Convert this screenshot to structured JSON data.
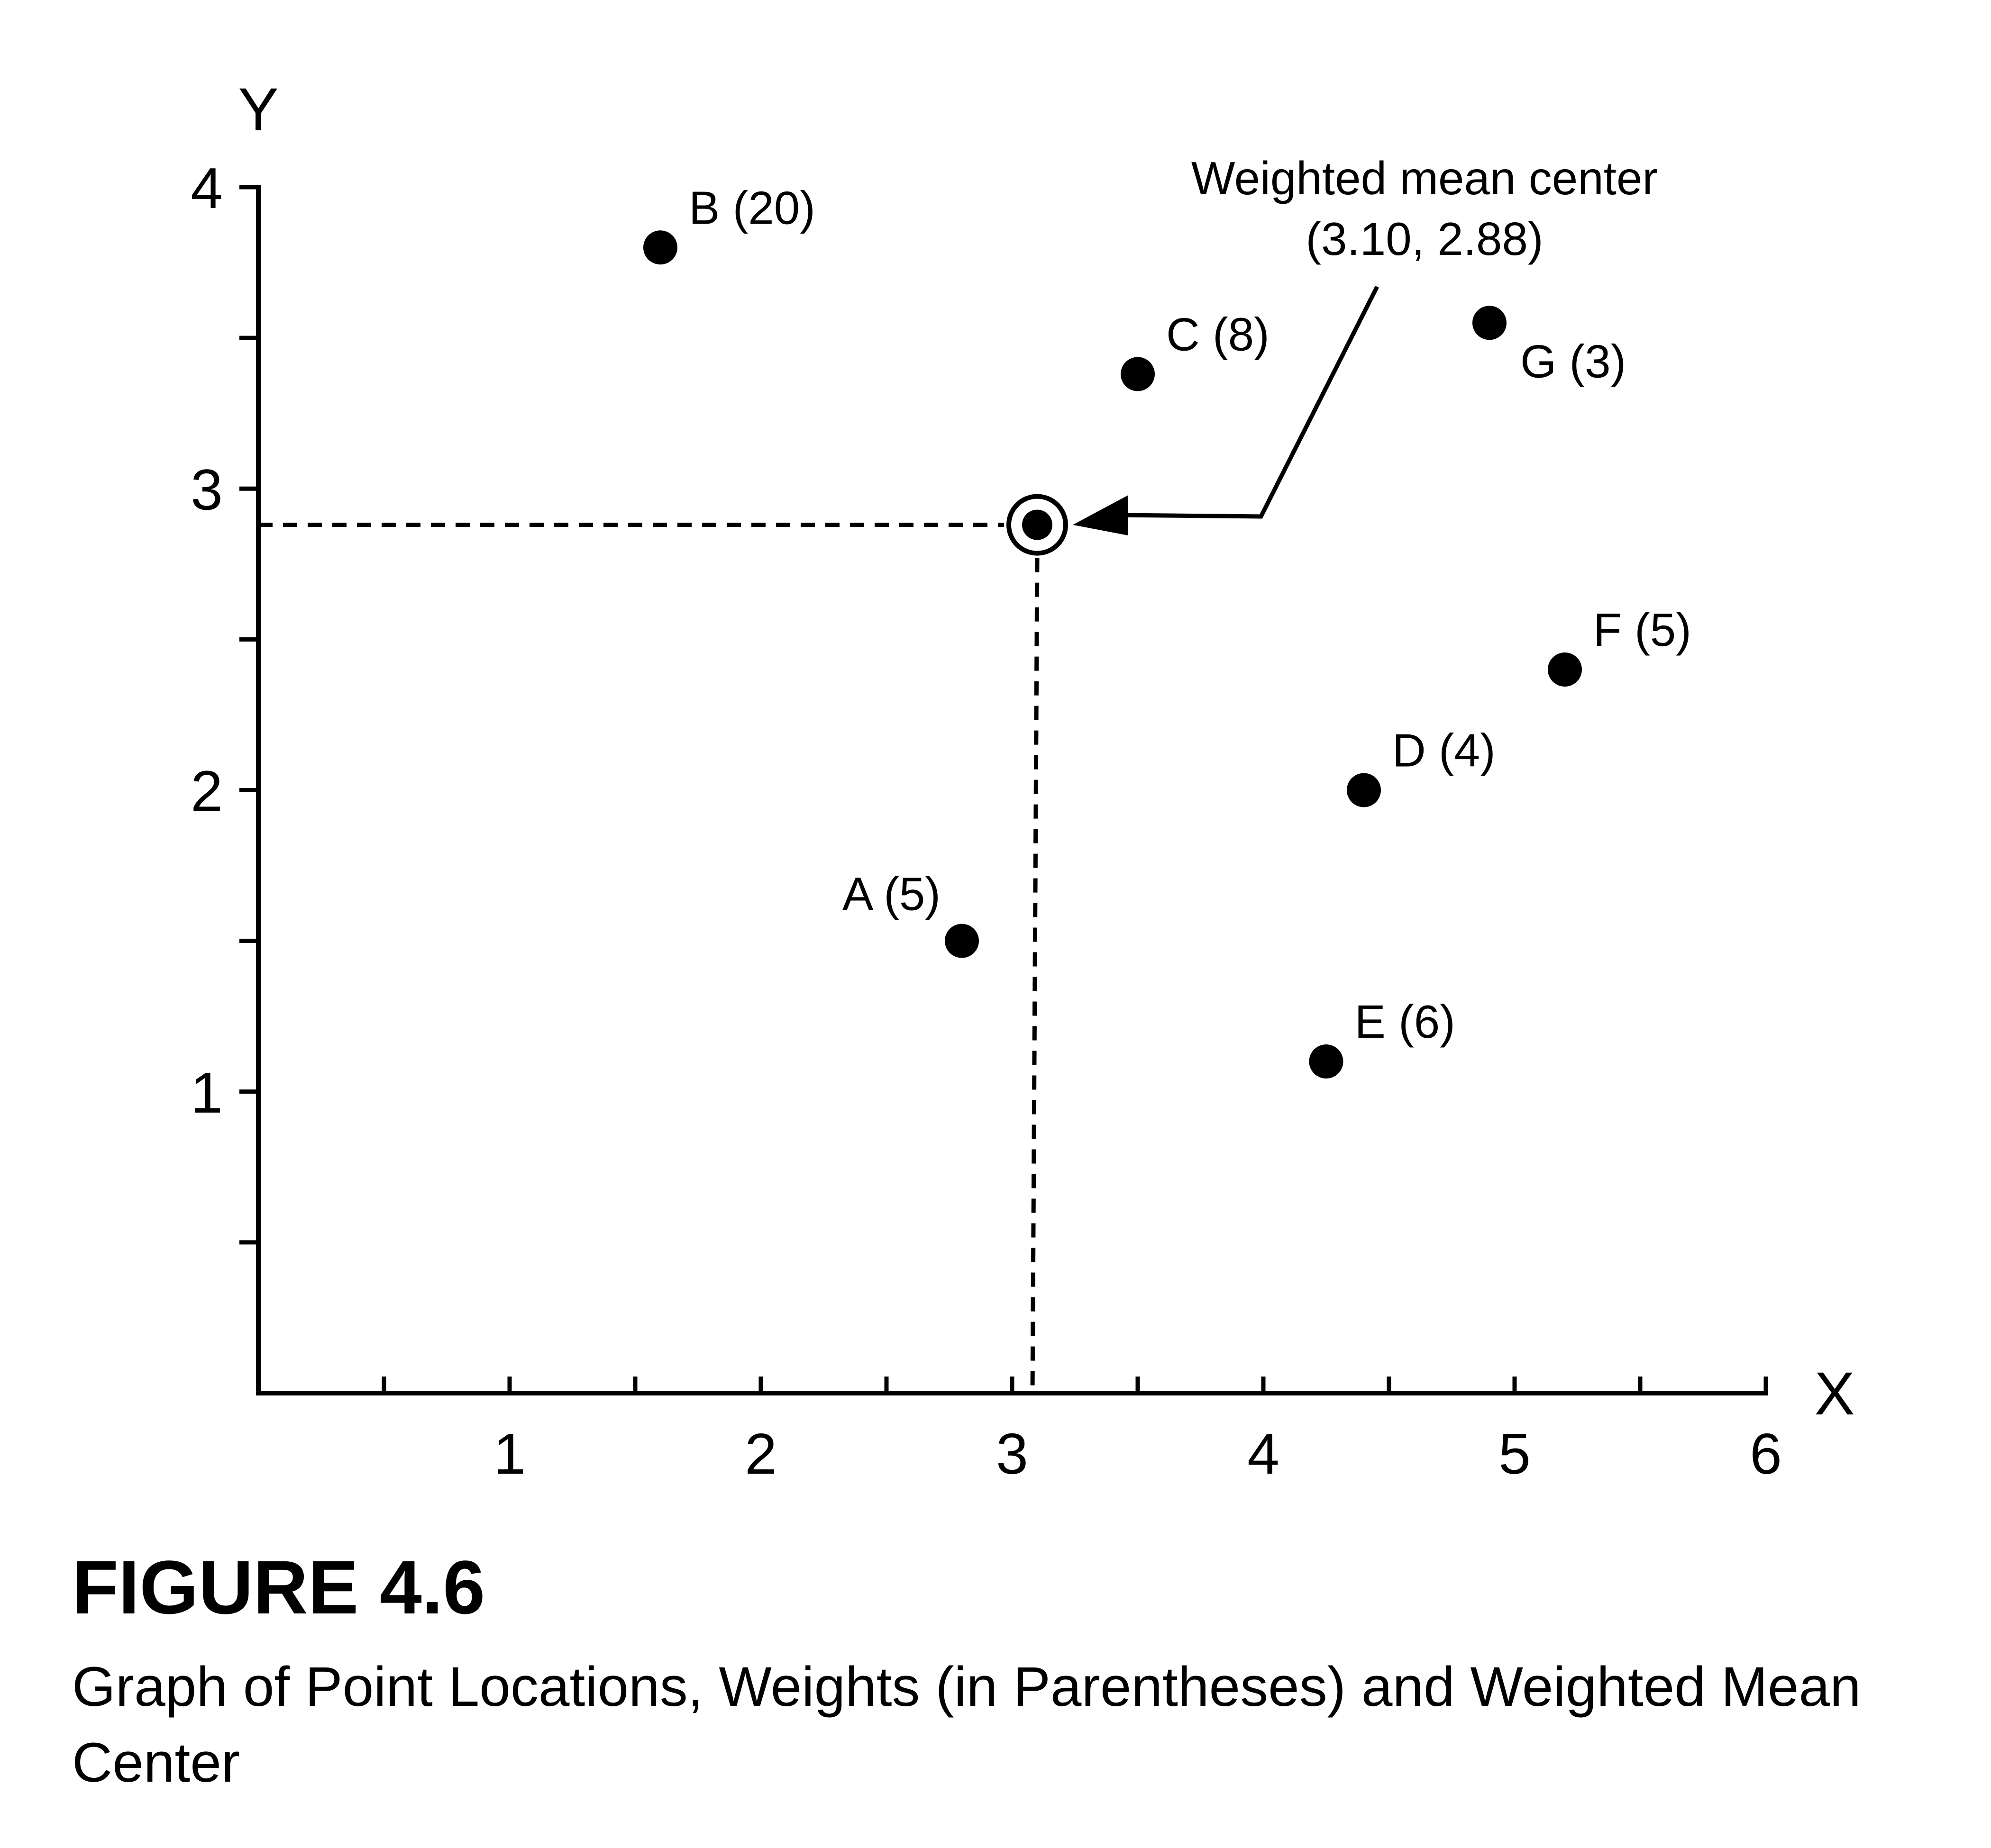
{
  "figure": {
    "number": "FIGURE 4.6",
    "caption": "Graph of Point Locations, Weights (in Parentheses) and Weighted Mean Center"
  },
  "chart_data": {
    "type": "scatter",
    "xlabel": "X",
    "ylabel": "Y",
    "xlim": [
      0,
      6
    ],
    "ylim": [
      0,
      4
    ],
    "x_ticks": [
      1,
      2,
      3,
      4,
      5,
      6
    ],
    "y_ticks": [
      1,
      2,
      3,
      4
    ],
    "x_tick_labels": [
      "1",
      "2",
      "3",
      "4",
      "5",
      "6"
    ],
    "y_tick_labels": [
      "1",
      "2",
      "3",
      "4"
    ],
    "minor_tick_step": 0.5,
    "grid": false,
    "points": [
      {
        "id": "A",
        "weight": 5,
        "x": 2.8,
        "y": 1.5,
        "label": "A (5)",
        "label_side": "upper-left"
      },
      {
        "id": "B",
        "weight": 20,
        "x": 1.6,
        "y": 3.8,
        "label": "B (20)",
        "label_side": "upper-right"
      },
      {
        "id": "C",
        "weight": 8,
        "x": 3.5,
        "y": 3.38,
        "label": "C (8)",
        "label_side": "upper-right"
      },
      {
        "id": "D",
        "weight": 4,
        "x": 4.4,
        "y": 2.0,
        "label": "D (4)",
        "label_side": "upper-right"
      },
      {
        "id": "E",
        "weight": 6,
        "x": 4.25,
        "y": 1.1,
        "label": "E (6)",
        "label_side": "upper-right"
      },
      {
        "id": "F",
        "weight": 5,
        "x": 5.2,
        "y": 2.4,
        "label": "F (5)",
        "label_side": "upper-right"
      },
      {
        "id": "G",
        "weight": 3,
        "x": 4.9,
        "y": 3.55,
        "label": "G (3)",
        "label_side": "lower-right"
      }
    ],
    "weighted_mean_center": {
      "x": 3.1,
      "y": 2.88,
      "label_line1": "Weighted mean center",
      "label_line2": "(3.10, 2.88)"
    }
  }
}
